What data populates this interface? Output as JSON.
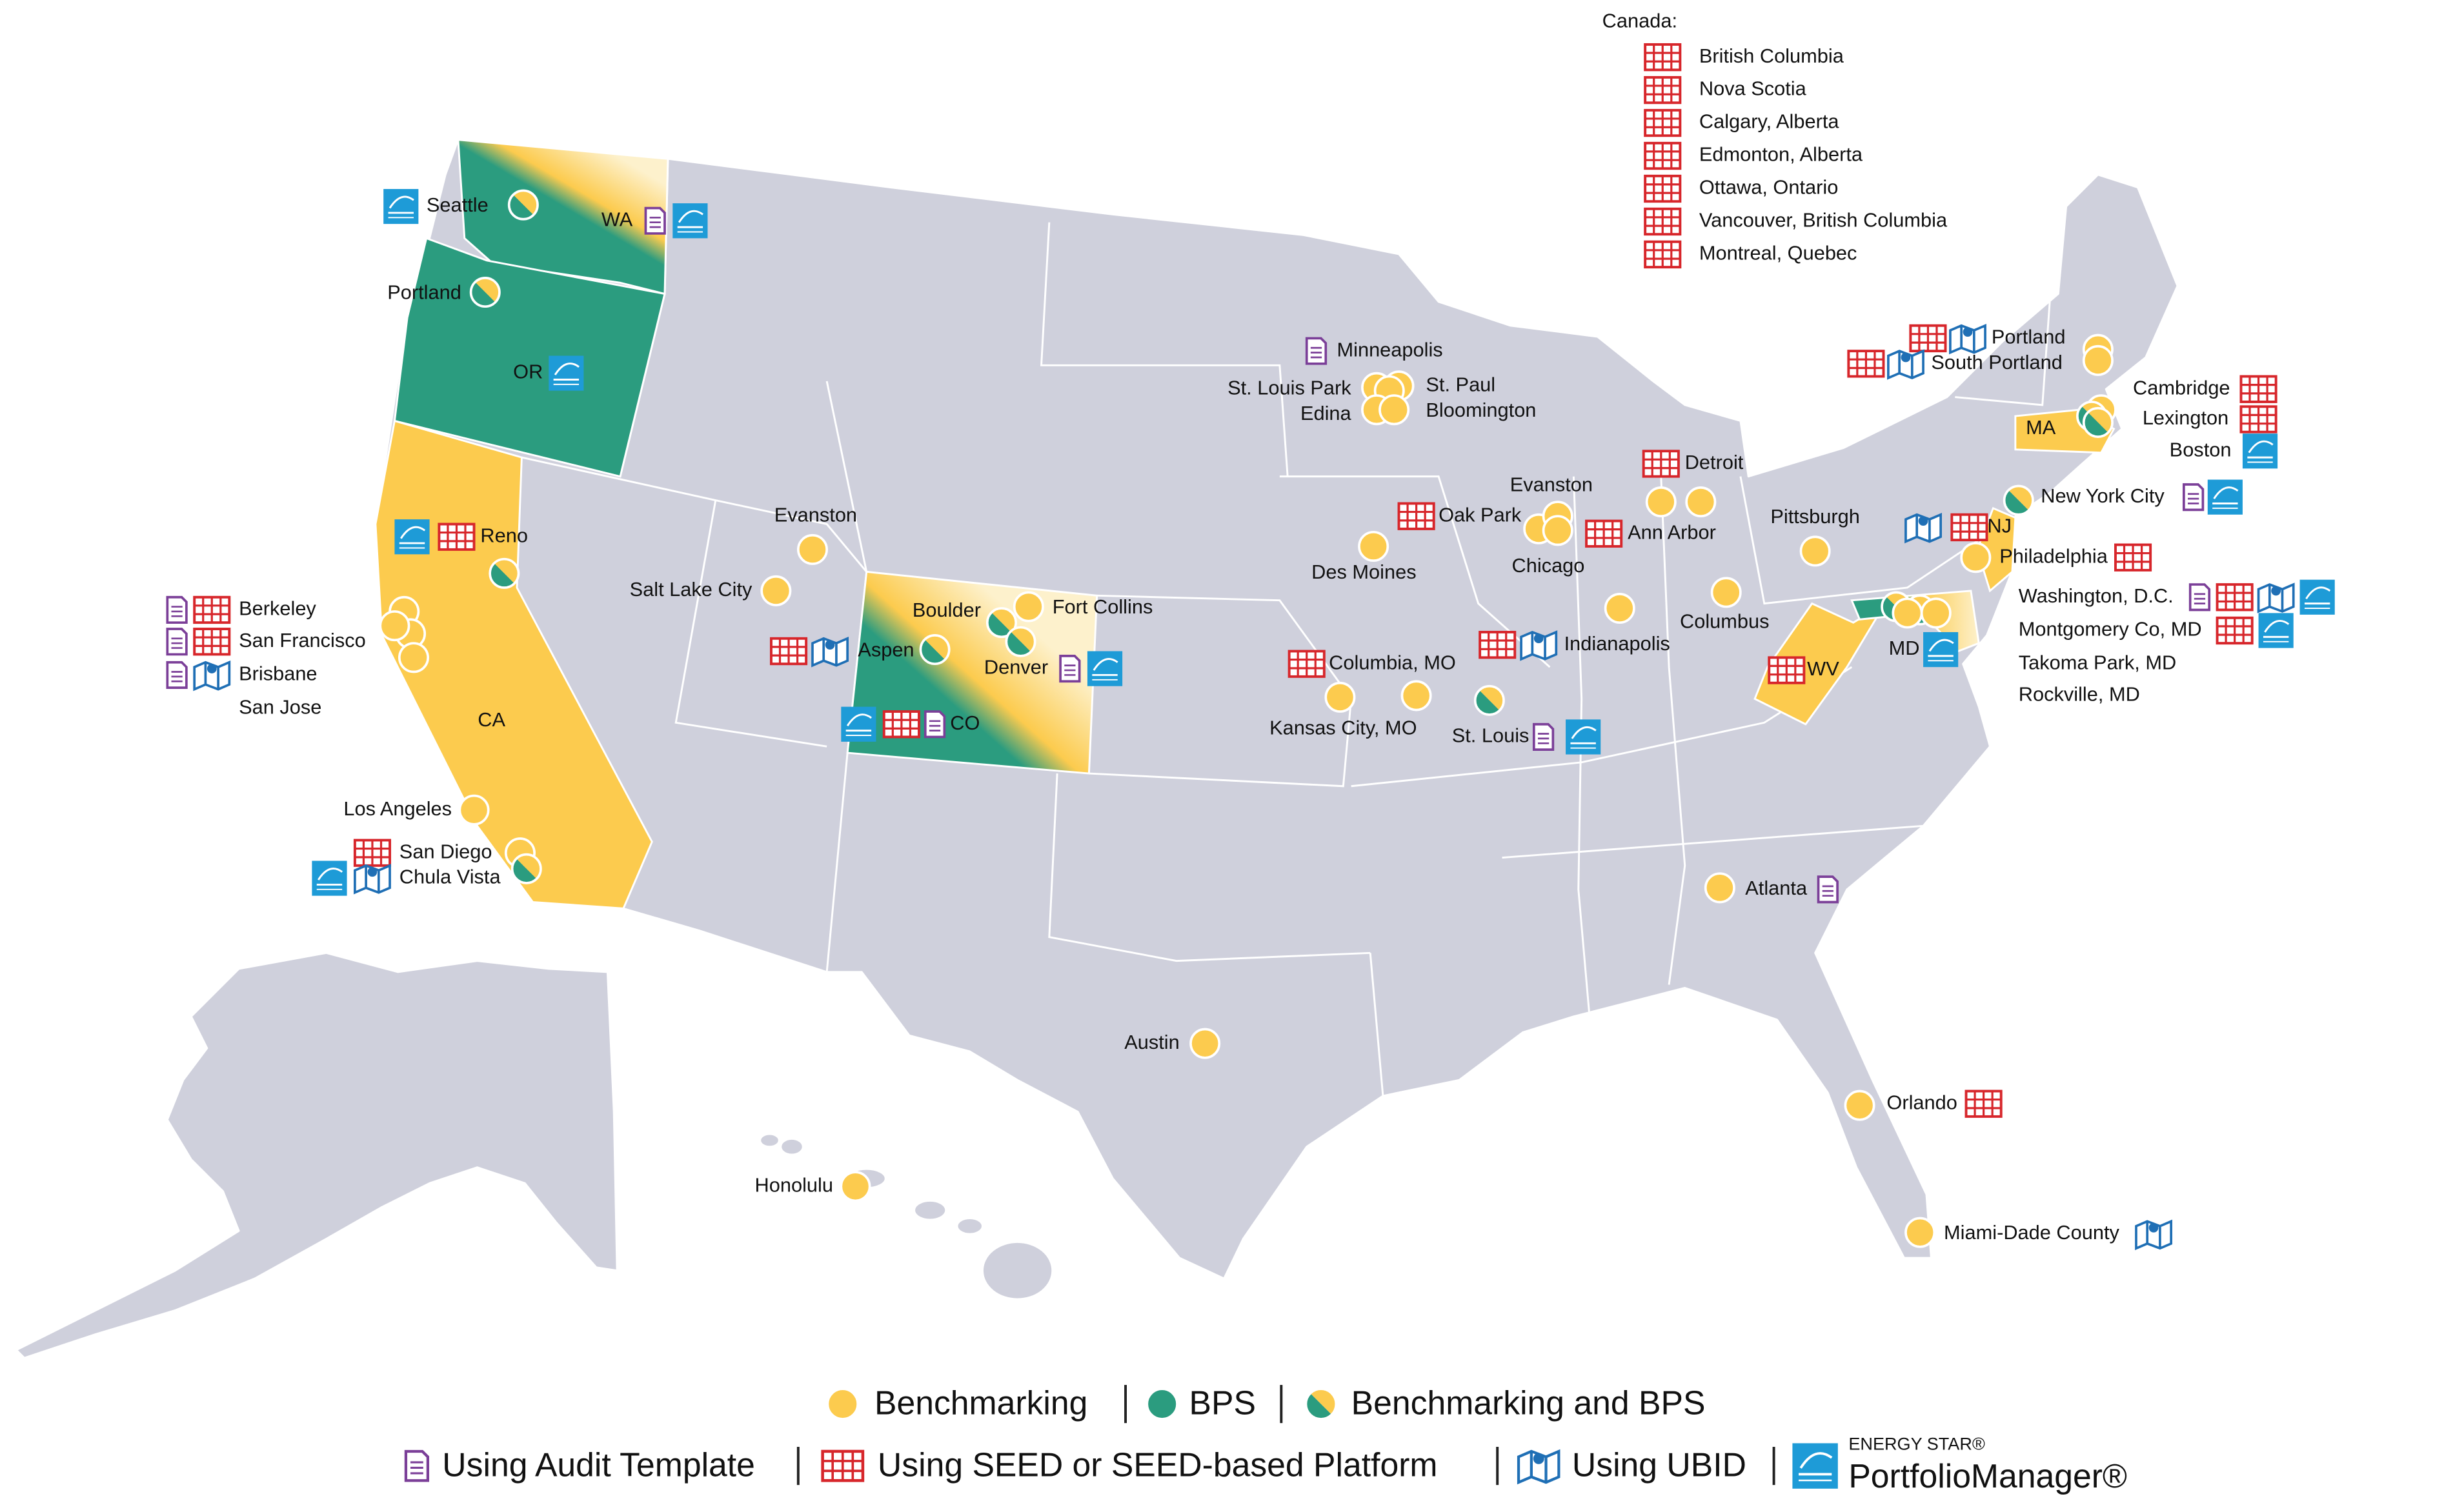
{
  "canada": {
    "heading": "Canada:",
    "cities": [
      {
        "name": "British Columbia",
        "tools": [
          "seed"
        ]
      },
      {
        "name": "Nova Scotia",
        "tools": [
          "seed"
        ]
      },
      {
        "name": "Calgary, Alberta",
        "tools": [
          "seed"
        ]
      },
      {
        "name": "Edmonton, Alberta",
        "tools": [
          "seed"
        ]
      },
      {
        "name": "Ottawa, Ontario",
        "tools": [
          "seed"
        ]
      },
      {
        "name": "Vancouver, British Columbia",
        "tools": [
          "seed"
        ]
      },
      {
        "name": "Montreal, Quebec",
        "tools": [
          "seed"
        ]
      }
    ]
  },
  "states": [
    {
      "name": "WA",
      "program": "both",
      "tools": [
        "audit",
        "energystar"
      ]
    },
    {
      "name": "OR",
      "program": "bps",
      "tools": [
        "energystar"
      ]
    },
    {
      "name": "CA",
      "program": "benchmarking",
      "tools": []
    },
    {
      "name": "CO",
      "program": "both",
      "tools": [
        "energystar",
        "seed",
        "audit"
      ]
    },
    {
      "name": "MA",
      "program": "benchmarking",
      "tools": []
    },
    {
      "name": "NJ",
      "program": "benchmarking",
      "tools": [
        "ubid",
        "seed"
      ]
    },
    {
      "name": "WV",
      "program": "benchmarking",
      "tools": [
        "seed"
      ]
    },
    {
      "name": "MD",
      "program": "both",
      "tools": [
        "energystar"
      ]
    }
  ],
  "cities": [
    {
      "name": "Seattle",
      "program": "both",
      "tools": [
        "energystar"
      ]
    },
    {
      "name": "Portland",
      "program": "both",
      "tools": []
    },
    {
      "name": "Reno",
      "program": "both",
      "tools": [
        "energystar",
        "seed"
      ]
    },
    {
      "name": "Berkeley",
      "program": "benchmarking",
      "tools": [
        "audit",
        "seed"
      ]
    },
    {
      "name": "San Francisco",
      "program": "benchmarking",
      "tools": [
        "audit",
        "seed"
      ]
    },
    {
      "name": "Brisbane",
      "program": "benchmarking",
      "tools": [
        "audit",
        "ubid"
      ]
    },
    {
      "name": "San Jose",
      "program": "benchmarking",
      "tools": []
    },
    {
      "name": "Los Angeles",
      "program": "benchmarking",
      "tools": []
    },
    {
      "name": "San Diego",
      "program": "benchmarking",
      "tools": [
        "seed"
      ]
    },
    {
      "name": "Chula Vista",
      "program": "both",
      "tools": [
        "energystar",
        "ubid"
      ]
    },
    {
      "name": "Evanston",
      "program": "benchmarking",
      "tools": []
    },
    {
      "name": "Salt Lake City",
      "program": "benchmarking",
      "tools": []
    },
    {
      "name": "Aspen",
      "program": "both",
      "tools": [
        "seed",
        "ubid"
      ]
    },
    {
      "name": "Boulder",
      "program": "both",
      "tools": []
    },
    {
      "name": "Fort Collins",
      "program": "benchmarking",
      "tools": []
    },
    {
      "name": "Denver",
      "program": "both",
      "tools": [
        "audit",
        "energystar"
      ]
    },
    {
      "name": "Minneapolis",
      "program": "benchmarking",
      "tools": [
        "audit"
      ]
    },
    {
      "name": "St. Louis Park",
      "program": "benchmarking",
      "tools": []
    },
    {
      "name": "St. Paul",
      "program": "benchmarking",
      "tools": []
    },
    {
      "name": "Edina",
      "program": "benchmarking",
      "tools": []
    },
    {
      "name": "Bloomington",
      "program": "benchmarking",
      "tools": []
    },
    {
      "name": "Des Moines",
      "program": "benchmarking",
      "tools": []
    },
    {
      "name": "Oak Park",
      "program": "benchmarking",
      "tools": [
        "seed"
      ]
    },
    {
      "name": "Evanston",
      "program": "benchmarking",
      "tools": []
    },
    {
      "name": "Chicago",
      "program": "benchmarking",
      "tools": []
    },
    {
      "name": "Detroit",
      "program": "benchmarking",
      "tools": [
        "seed"
      ]
    },
    {
      "name": "Ann Arbor",
      "program": "benchmarking",
      "tools": [
        "seed"
      ]
    },
    {
      "name": "Indianapolis",
      "program": "benchmarking",
      "tools": [
        "seed",
        "ubid"
      ]
    },
    {
      "name": "Columbia, MO",
      "program": "benchmarking",
      "tools": [
        "seed"
      ]
    },
    {
      "name": "Kansas City, MO",
      "program": "benchmarking",
      "tools": []
    },
    {
      "name": "St. Louis",
      "program": "both",
      "tools": [
        "audit",
        "energystar"
      ]
    },
    {
      "name": "Pittsburgh",
      "program": "benchmarking",
      "tools": []
    },
    {
      "name": "Columbus",
      "program": "benchmarking",
      "tools": []
    },
    {
      "name": "Atlanta",
      "program": "benchmarking",
      "tools": [
        "audit"
      ]
    },
    {
      "name": "Austin",
      "program": "benchmarking",
      "tools": []
    },
    {
      "name": "Orlando",
      "program": "benchmarking",
      "tools": [
        "seed"
      ]
    },
    {
      "name": "Miami-Dade County",
      "program": "benchmarking",
      "tools": [
        "ubid"
      ]
    },
    {
      "name": "Honolulu",
      "program": "benchmarking",
      "tools": []
    },
    {
      "name": "Portland",
      "program": "benchmarking",
      "tools": [
        "seed",
        "ubid"
      ]
    },
    {
      "name": "South Portland",
      "program": "benchmarking",
      "tools": [
        "seed",
        "ubid"
      ]
    },
    {
      "name": "Cambridge",
      "program": "benchmarking",
      "tools": [
        "seed"
      ]
    },
    {
      "name": "Lexington",
      "program": "both",
      "tools": [
        "seed"
      ]
    },
    {
      "name": "Boston",
      "program": "both",
      "tools": [
        "energystar"
      ]
    },
    {
      "name": "New York City",
      "program": "both",
      "tools": [
        "audit",
        "energystar"
      ]
    },
    {
      "name": "Philadelphia",
      "program": "benchmarking",
      "tools": [
        "seed"
      ]
    },
    {
      "name": "Washington, D.C.",
      "program": "both",
      "tools": [
        "audit",
        "seed",
        "ubid",
        "energystar"
      ]
    },
    {
      "name": "Montgomery Co, MD",
      "program": "both",
      "tools": [
        "seed",
        "energystar"
      ]
    },
    {
      "name": "Takoma Park, MD",
      "program": "benchmarking",
      "tools": []
    },
    {
      "name": "Rockville, MD",
      "program": "benchmarking",
      "tools": []
    }
  ],
  "legend": {
    "programs": [
      {
        "label": "Benchmarking",
        "program": "benchmarking"
      },
      {
        "label": "BPS",
        "program": "bps"
      },
      {
        "label": "Benchmarking and BPS",
        "program": "both"
      }
    ],
    "tools": [
      {
        "label": "Using Audit Template",
        "tool": "audit"
      },
      {
        "label": "Using SEED or SEED-based Platform",
        "tool": "seed"
      },
      {
        "label": "Using UBID",
        "tool": "ubid"
      },
      {
        "label": "PortfolioManager®",
        "brand": "ENERGY STAR®",
        "tool": "energystar"
      }
    ]
  }
}
